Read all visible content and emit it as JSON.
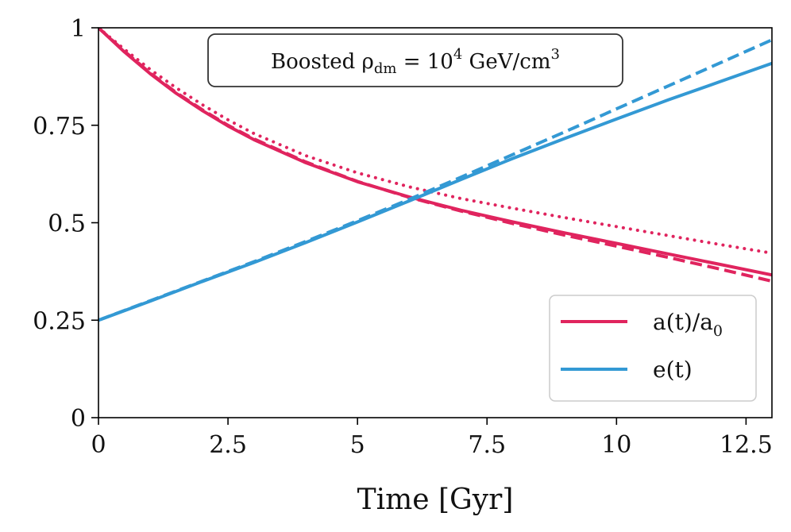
{
  "chart_data": {
    "type": "line",
    "title": "",
    "xlabel": "Time [Gyr]",
    "ylabel": "",
    "xlim": [
      0,
      13
    ],
    "ylim": [
      0,
      1
    ],
    "x_ticks": [
      0,
      2.5,
      5,
      7.5,
      10,
      12.5
    ],
    "x_tick_labels": [
      "0",
      "2.5",
      "5",
      "7.5",
      "10",
      "12.5"
    ],
    "y_ticks": [
      0,
      0.25,
      0.5,
      0.75,
      1
    ],
    "y_tick_labels": [
      "0",
      "0.25",
      "0.5",
      "0.75",
      "1"
    ],
    "grid": false,
    "legend_position": "bottom-right",
    "annotation": {
      "prefix": "Boosted ρ",
      "subscript": "dm",
      "middle": " = 10",
      "superscript": "4",
      "suffix": " GeV/cm",
      "suffix_superscript": "3"
    },
    "legend": [
      {
        "label_main": "a(t)/a",
        "label_sub": "0",
        "color": "#e0245e"
      },
      {
        "label_main": "e(t)",
        "label_sub": "",
        "color": "#3399d4"
      }
    ],
    "series": [
      {
        "name": "a(t)/a0 solid",
        "color": "#e0245e",
        "style": "solid",
        "x": [
          0,
          0.5,
          1,
          1.5,
          2,
          2.5,
          3,
          4,
          5,
          6,
          7,
          8,
          9,
          10,
          11,
          12,
          13
        ],
        "values": [
          1.0,
          0.938,
          0.882,
          0.832,
          0.788,
          0.748,
          0.713,
          0.654,
          0.605,
          0.566,
          0.532,
          0.502,
          0.474,
          0.447,
          0.42,
          0.393,
          0.366
        ]
      },
      {
        "name": "a(t)/a0 dashed",
        "color": "#e0245e",
        "style": "dashed",
        "x": [
          0,
          0.5,
          1,
          1.5,
          2,
          2.5,
          3,
          4,
          5,
          6,
          7,
          8,
          9,
          10,
          11,
          12,
          13
        ],
        "values": [
          1.0,
          0.94,
          0.884,
          0.834,
          0.79,
          0.75,
          0.715,
          0.656,
          0.606,
          0.565,
          0.53,
          0.498,
          0.468,
          0.44,
          0.411,
          0.381,
          0.35
        ]
      },
      {
        "name": "a(t)/a0 dotted",
        "color": "#e0245e",
        "style": "dotted",
        "x": [
          0,
          0.5,
          1,
          1.5,
          2,
          2.5,
          3,
          4,
          5,
          6,
          7,
          8,
          9,
          10,
          11,
          12,
          13
        ],
        "values": [
          1.0,
          0.945,
          0.893,
          0.846,
          0.803,
          0.764,
          0.729,
          0.672,
          0.628,
          0.592,
          0.562,
          0.537,
          0.513,
          0.49,
          0.467,
          0.444,
          0.422
        ]
      },
      {
        "name": "e(t) solid",
        "color": "#3399d4",
        "style": "solid",
        "x": [
          0,
          1,
          2,
          3,
          4,
          5,
          6,
          7,
          8,
          9,
          10,
          11,
          12,
          13
        ],
        "values": [
          0.25,
          0.299,
          0.349,
          0.398,
          0.449,
          0.502,
          0.556,
          0.611,
          0.665,
          0.716,
          0.766,
          0.815,
          0.862,
          0.909
        ]
      },
      {
        "name": "e(t) dashed",
        "color": "#3399d4",
        "style": "dashed",
        "x": [
          0,
          1,
          2,
          3,
          4,
          5,
          6,
          7,
          8,
          9,
          10,
          11,
          12,
          13
        ],
        "values": [
          0.25,
          0.3,
          0.35,
          0.4,
          0.452,
          0.505,
          0.56,
          0.617,
          0.675,
          0.733,
          0.792,
          0.851,
          0.91,
          0.969
        ]
      }
    ]
  }
}
